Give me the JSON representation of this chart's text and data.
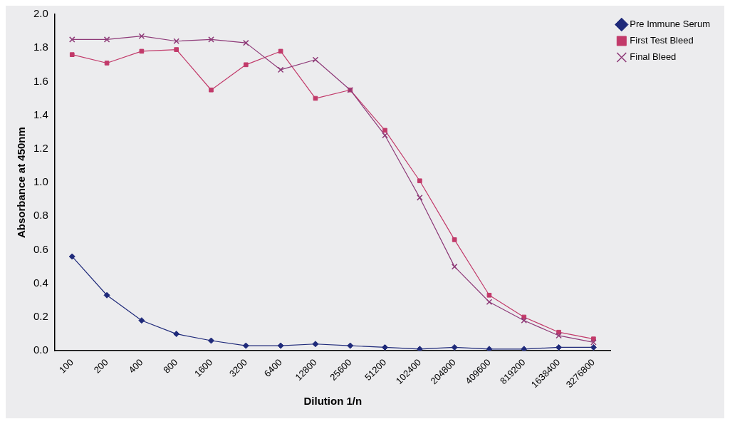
{
  "chart_data": {
    "type": "line",
    "xlabel": "Dilution 1/n",
    "ylabel": "Absorbance at 450nm",
    "categories": [
      "100",
      "200",
      "400",
      "800",
      "1600",
      "3200",
      "6400",
      "12800",
      "25600",
      "51200",
      "102400",
      "204800",
      "409600",
      "819200",
      "1638400",
      "3276800"
    ],
    "series": [
      {
        "name": "Pre Immune Serum",
        "color": "#1f2a7a",
        "marker": "diamond",
        "values": [
          0.56,
          0.33,
          0.18,
          0.1,
          0.06,
          0.03,
          0.03,
          0.04,
          0.03,
          0.02,
          0.01,
          0.02,
          0.01,
          0.01,
          0.02,
          0.02
        ]
      },
      {
        "name": "First Test Bleed",
        "color": "#c23a6a",
        "marker": "square",
        "values": [
          1.76,
          1.71,
          1.78,
          1.79,
          1.55,
          1.7,
          1.78,
          1.5,
          1.55,
          1.31,
          1.01,
          0.66,
          0.33,
          0.2,
          0.11,
          0.07
        ]
      },
      {
        "name": "Final Bleed",
        "color": "#8e3a78",
        "marker": "cross",
        "values": [
          1.85,
          1.85,
          1.87,
          1.84,
          1.85,
          1.83,
          1.67,
          1.73,
          1.55,
          1.28,
          0.91,
          0.5,
          0.29,
          0.18,
          0.09,
          0.05
        ]
      }
    ],
    "ylim": [
      0,
      2.0
    ],
    "yticks": [
      {
        "value": 0,
        "label": "0.0"
      },
      0.2,
      0.4,
      0.6,
      0.8,
      {
        "value": 1,
        "label": "1.0"
      },
      1.2,
      1.4,
      1.6,
      1.8,
      {
        "value": 2,
        "label": "2.0"
      }
    ],
    "grid": false,
    "legend": "top right",
    "line_style": "solid"
  }
}
